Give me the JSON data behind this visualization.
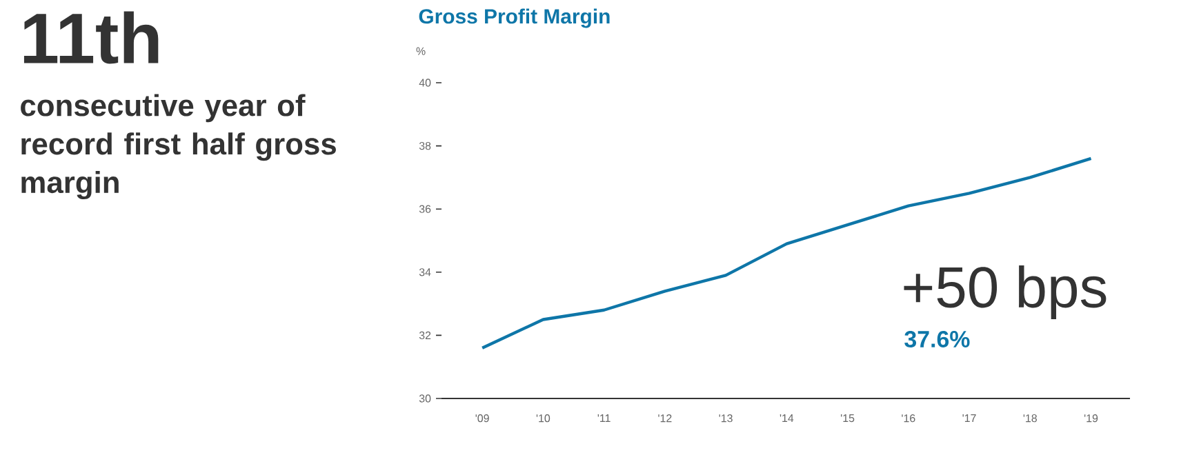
{
  "chart_data": {
    "type": "line",
    "title": "Gross Profit Margin",
    "ylabel": "%",
    "categories": [
      "'09",
      "'10",
      "'11",
      "'12",
      "'13",
      "'14",
      "'15",
      "'16",
      "'17",
      "'18",
      "'19"
    ],
    "series": [
      {
        "color": "#0e76a8",
        "values": [
          31.6,
          32.5,
          32.8,
          33.4,
          33.9,
          34.9,
          35.5,
          36.1,
          36.5,
          37.0,
          37.6
        ]
      }
    ],
    "ylim": [
      30,
      40
    ],
    "yticks": [
      30,
      32,
      34,
      36,
      38,
      40
    ],
    "grid": false,
    "marker": "none",
    "line_style": "solid",
    "annotations": [
      "11th",
      "consecutive year of record first half gross margin",
      "+50 bps",
      "37.6%"
    ]
  }
}
